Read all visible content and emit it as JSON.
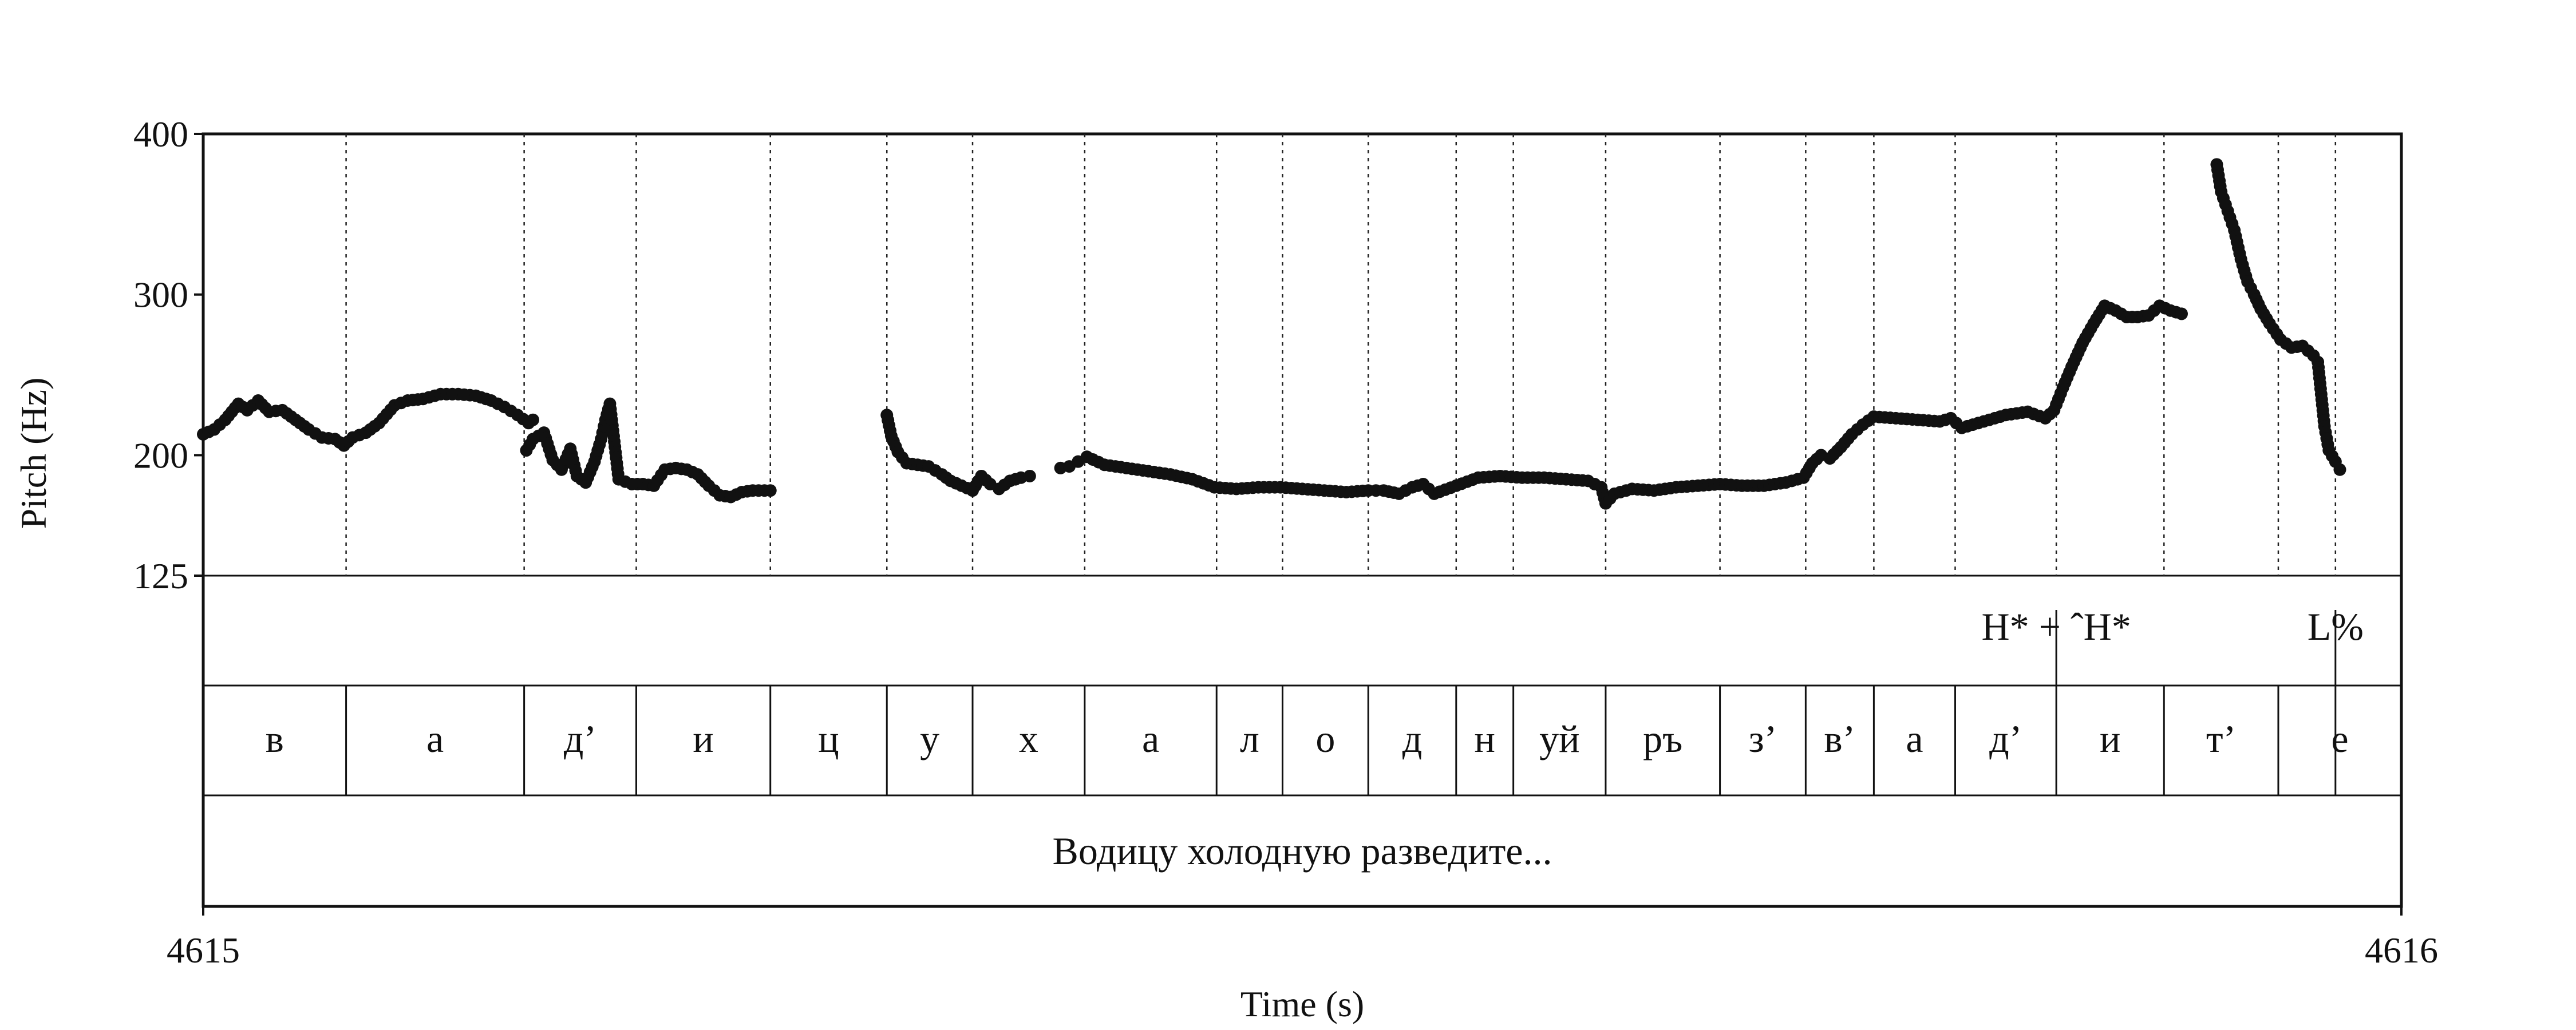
{
  "chart_data": {
    "type": "scatter",
    "xlabel": "Time (s)",
    "ylabel": "Pitch (Hz)",
    "xlim": [
      4615,
      4616
    ],
    "ylim": [
      125,
      400
    ],
    "x_ticks": [
      "4615",
      "4616"
    ],
    "y_ticks": [
      {
        "label": "400",
        "value": 400
      },
      {
        "label": "300",
        "value": 300
      },
      {
        "label": "200",
        "value": 200
      },
      {
        "label": "125",
        "value": 125
      }
    ],
    "boundaries": [
      4615.065,
      4615.146,
      4615.197,
      4615.258,
      4615.311,
      4615.35,
      4615.401,
      4615.461,
      4615.491,
      4615.53,
      4615.57,
      4615.596,
      4615.638,
      4615.69,
      4615.729,
      4615.76,
      4615.797,
      4615.843,
      4615.892,
      4615.944,
      4615.97
    ],
    "segments": [
      {
        "label": "в",
        "start": 4615.0,
        "end": 4615.065
      },
      {
        "label": "а",
        "start": 4615.065,
        "end": 4615.146
      },
      {
        "label": "д’",
        "start": 4615.146,
        "end": 4615.197
      },
      {
        "label": "и",
        "start": 4615.197,
        "end": 4615.258
      },
      {
        "label": "ц",
        "start": 4615.258,
        "end": 4615.311
      },
      {
        "label": "у",
        "start": 4615.311,
        "end": 4615.35
      },
      {
        "label": "х",
        "start": 4615.35,
        "end": 4615.401
      },
      {
        "label": "а",
        "start": 4615.401,
        "end": 4615.461
      },
      {
        "label": "л",
        "start": 4615.461,
        "end": 4615.491
      },
      {
        "label": "о",
        "start": 4615.491,
        "end": 4615.53
      },
      {
        "label": "д",
        "start": 4615.53,
        "end": 4615.57
      },
      {
        "label": "н",
        "start": 4615.57,
        "end": 4615.596
      },
      {
        "label": "уй",
        "start": 4615.596,
        "end": 4615.638
      },
      {
        "label": "ръ",
        "start": 4615.638,
        "end": 4615.69
      },
      {
        "label": "з’",
        "start": 4615.69,
        "end": 4615.729
      },
      {
        "label": "в’",
        "start": 4615.729,
        "end": 4615.76
      },
      {
        "label": "а",
        "start": 4615.76,
        "end": 4615.797
      },
      {
        "label": "д’",
        "start": 4615.797,
        "end": 4615.843
      },
      {
        "label": "и",
        "start": 4615.843,
        "end": 4615.892
      },
      {
        "label": "т’",
        "start": 4615.892,
        "end": 4615.944
      },
      {
        "label": "е",
        "start": 4615.944,
        "end": 4616.0
      }
    ],
    "tones": [
      {
        "label": "H* + ˆH*",
        "time": 4615.843
      },
      {
        "label": "L%",
        "time": 4615.97
      }
    ],
    "sentence": "Водицу холодную разведите...",
    "pitch_contours": [
      [
        [
          4615.0,
          213
        ],
        [
          4615.005,
          216
        ],
        [
          4615.01,
          222
        ],
        [
          4615.016,
          232
        ],
        [
          4615.02,
          228
        ],
        [
          4615.025,
          234
        ],
        [
          4615.03,
          227
        ],
        [
          4615.036,
          228
        ],
        [
          4615.042,
          222
        ],
        [
          4615.048,
          216
        ],
        [
          4615.054,
          211
        ],
        [
          4615.06,
          210
        ],
        [
          4615.064,
          206
        ],
        [
          4615.068,
          211
        ],
        [
          4615.074,
          214
        ],
        [
          4615.08,
          220
        ],
        [
          4615.087,
          231
        ],
        [
          4615.093,
          234
        ],
        [
          4615.1,
          235
        ],
        [
          4615.108,
          238
        ],
        [
          4615.116,
          238
        ],
        [
          4615.124,
          237
        ],
        [
          4615.131,
          234
        ],
        [
          4615.137,
          230
        ],
        [
          4615.143,
          225
        ],
        [
          4615.148,
          220
        ],
        [
          4615.15,
          222
        ]
      ],
      [
        [
          4615.147,
          203
        ],
        [
          4615.15,
          210
        ],
        [
          4615.155,
          214
        ],
        [
          4615.159,
          197
        ],
        [
          4615.163,
          191
        ],
        [
          4615.167,
          204
        ],
        [
          4615.17,
          187
        ],
        [
          4615.174,
          183
        ],
        [
          4615.178,
          196
        ],
        [
          4615.181,
          210
        ],
        [
          4615.183,
          222
        ],
        [
          4615.185,
          232
        ],
        [
          4615.189,
          185
        ],
        [
          4615.195,
          182
        ],
        [
          4615.2,
          182
        ],
        [
          4615.205,
          181
        ],
        [
          4615.21,
          191
        ],
        [
          4615.215,
          192
        ],
        [
          4615.22,
          191
        ],
        [
          4615.225,
          188
        ],
        [
          4615.23,
          181
        ],
        [
          4615.235,
          175
        ],
        [
          4615.24,
          174
        ],
        [
          4615.245,
          177
        ],
        [
          4615.25,
          178
        ],
        [
          4615.258,
          178
        ]
      ],
      [
        [
          4615.311,
          225
        ],
        [
          4615.313,
          212
        ],
        [
          4615.316,
          202
        ],
        [
          4615.32,
          195
        ],
        [
          4615.325,
          194
        ],
        [
          4615.33,
          193
        ],
        [
          4615.336,
          188
        ],
        [
          4615.34,
          184
        ],
        [
          4615.345,
          181
        ],
        [
          4615.35,
          178
        ],
        [
          4615.354,
          187
        ],
        [
          4615.358,
          182
        ],
        [
          4615.362,
          179
        ],
        [
          4615.367,
          184
        ],
        [
          4615.372,
          186
        ],
        [
          4615.376,
          187
        ]
      ],
      [
        [
          4615.39,
          192
        ],
        [
          4615.394,
          193
        ],
        [
          4615.398,
          196
        ],
        [
          4615.402,
          199
        ],
        [
          4615.41,
          194
        ],
        [
          4615.42,
          192
        ],
        [
          4615.43,
          190
        ],
        [
          4615.44,
          188
        ],
        [
          4615.45,
          185
        ],
        [
          4615.46,
          180
        ],
        [
          4615.47,
          179
        ],
        [
          4615.48,
          180
        ],
        [
          4615.49,
          180
        ],
        [
          4615.5,
          179
        ],
        [
          4615.51,
          178
        ],
        [
          4615.52,
          177
        ],
        [
          4615.53,
          178
        ],
        [
          4615.537,
          178
        ],
        [
          4615.544,
          176
        ],
        [
          4615.55,
          180
        ],
        [
          4615.555,
          182
        ],
        [
          4615.56,
          176
        ],
        [
          4615.57,
          181
        ],
        [
          4615.58,
          186
        ],
        [
          4615.59,
          187
        ],
        [
          4615.6,
          186
        ],
        [
          4615.61,
          186
        ],
        [
          4615.62,
          185
        ],
        [
          4615.63,
          184
        ],
        [
          4615.636,
          180
        ],
        [
          4615.638,
          170
        ],
        [
          4615.642,
          176
        ],
        [
          4615.65,
          179
        ],
        [
          4615.66,
          178
        ],
        [
          4615.67,
          180
        ],
        [
          4615.68,
          181
        ],
        [
          4615.69,
          182
        ],
        [
          4615.7,
          181
        ],
        [
          4615.71,
          181
        ],
        [
          4615.72,
          183
        ],
        [
          4615.728,
          186
        ],
        [
          4615.732,
          195
        ],
        [
          4615.736,
          200
        ],
        [
          4615.74,
          198
        ],
        [
          4615.745,
          205
        ],
        [
          4615.75,
          213
        ],
        [
          4615.755,
          219
        ],
        [
          4615.76,
          224
        ],
        [
          4615.77,
          223
        ],
        [
          4615.78,
          222
        ],
        [
          4615.79,
          221
        ],
        [
          4615.795,
          223
        ],
        [
          4615.8,
          217
        ],
        [
          4615.81,
          221
        ],
        [
          4615.82,
          225
        ],
        [
          4615.83,
          227
        ],
        [
          4615.838,
          223
        ],
        [
          4615.842,
          228
        ],
        [
          4615.846,
          242
        ],
        [
          4615.85,
          255
        ],
        [
          4615.855,
          270
        ],
        [
          4615.86,
          282
        ],
        [
          4615.865,
          293
        ],
        [
          4615.87,
          290
        ],
        [
          4615.875,
          286
        ],
        [
          4615.88,
          286
        ],
        [
          4615.885,
          287
        ],
        [
          4615.89,
          293
        ],
        [
          4615.895,
          290
        ],
        [
          4615.9,
          288
        ]
      ],
      [
        [
          4615.916,
          381
        ],
        [
          4615.918,
          364
        ],
        [
          4615.921,
          352
        ],
        [
          4615.924,
          340
        ],
        [
          4615.927,
          322
        ],
        [
          4615.93,
          308
        ],
        [
          4615.933,
          300
        ],
        [
          4615.936,
          291
        ],
        [
          4615.94,
          282
        ],
        [
          4615.945,
          272
        ],
        [
          4615.95,
          267
        ],
        [
          4615.955,
          268
        ],
        [
          4615.96,
          262
        ],
        [
          4615.962,
          258
        ],
        [
          4615.965,
          218
        ],
        [
          4615.967,
          203
        ],
        [
          4615.97,
          196
        ],
        [
          4615.972,
          191
        ]
      ]
    ]
  }
}
